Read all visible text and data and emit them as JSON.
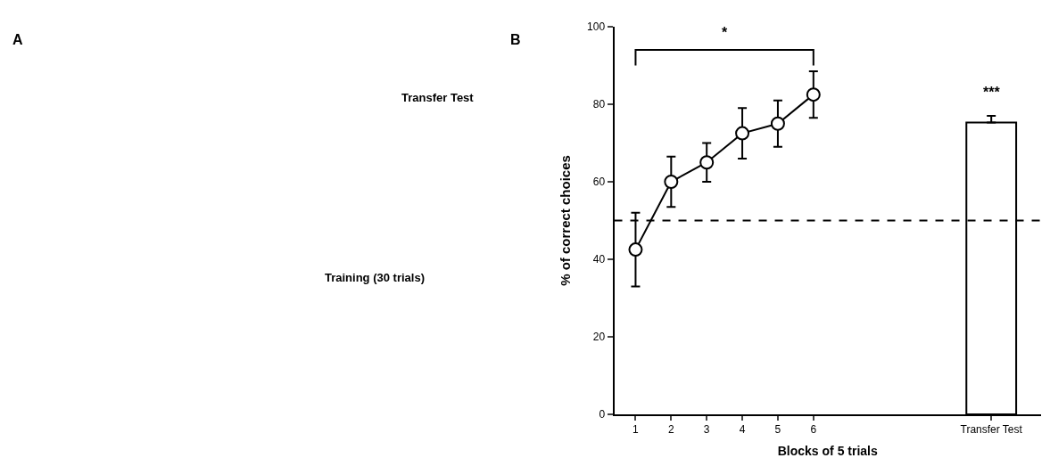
{
  "chart_data": {
    "type": "line",
    "xlabel": "Blocks of 5 trials",
    "ylabel": "% of correct choices",
    "categories": [
      "1",
      "2",
      "3",
      "4",
      "5",
      "6",
      null,
      null,
      null,
      null,
      "Transfer Test"
    ],
    "series": [
      {
        "color": "#000000",
        "marker": "circle",
        "values": [
          42.5,
          60,
          65,
          72.5,
          75,
          82.5,
          null,
          null,
          null,
          null,
          null
        ],
        "errors": [
          [
            33,
            52
          ],
          [
            53.5,
            66.5
          ],
          [
            60,
            70
          ],
          [
            66,
            79
          ],
          [
            69,
            81
          ],
          [
            76.5,
            88.5
          ],
          null,
          null,
          null,
          null,
          null
        ]
      },
      {
        "type": "bar",
        "color": "#ffffff",
        "values": [
          null,
          null,
          null,
          null,
          null,
          null,
          null,
          null,
          null,
          null,
          75.3
        ],
        "errors": [
          null,
          null,
          null,
          null,
          null,
          null,
          null,
          null,
          null,
          null,
          [
            75.3,
            77
          ]
        ]
      }
    ],
    "ylim": [
      0,
      100
    ],
    "yticks": [
      0,
      20,
      40,
      60,
      80,
      100
    ],
    "ref_lines": [
      {
        "axis": "y",
        "value": 50,
        "line_style": "dashed",
        "color": "#000000"
      }
    ],
    "annotations": [
      "A",
      "B",
      "Transfer Test",
      "Training (30 trials)",
      "*",
      "***"
    ]
  }
}
